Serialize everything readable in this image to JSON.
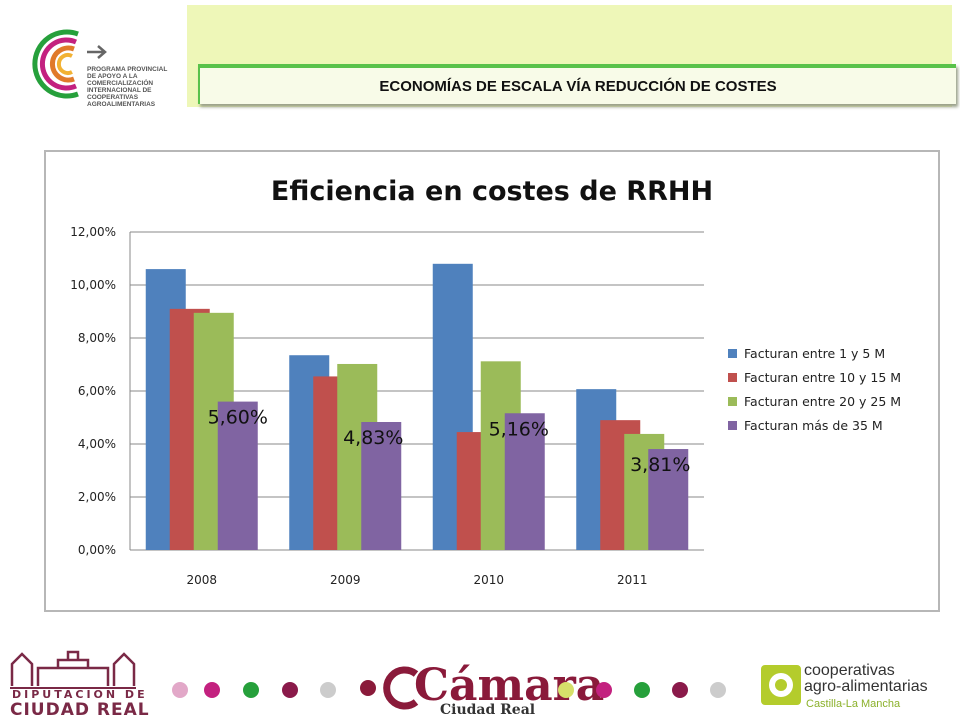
{
  "header": {
    "title": "ECONOMÍAS DE ESCALA VÍA REDUCCIÓN DE COSTES",
    "program_lines": [
      "PROGRAMA PROVINCIAL",
      "DE APOYO A LA",
      "COMERCIALIZACIÓN",
      "INTERNACIONAL DE",
      "COOPERATIVAS",
      "AGROALIMENTARIAS"
    ]
  },
  "chart_data": {
    "type": "bar",
    "title": "Eficiencia en costes de RRHH",
    "categories": [
      "2008",
      "2009",
      "2010",
      "2011"
    ],
    "series": [
      {
        "name": "Facturan entre 1 y 5 M",
        "color": "#4f81bd",
        "values": [
          10.6,
          7.35,
          10.8,
          6.07
        ]
      },
      {
        "name": "Facturan entre 10 y 15 M",
        "color": "#c0504d",
        "values": [
          9.1,
          6.55,
          4.45,
          4.9
        ]
      },
      {
        "name": "Facturan entre 20 y 25 M",
        "color": "#9bbb59",
        "values": [
          8.95,
          7.02,
          7.12,
          4.38
        ]
      },
      {
        "name": "Facturan más de 35 M",
        "color": "#8064a2",
        "values": [
          5.6,
          4.83,
          5.16,
          3.81
        ]
      }
    ],
    "ylim": [
      0,
      12
    ],
    "yticks": [
      "0,00%",
      "2,00%",
      "4,00%",
      "6,00%",
      "8,00%",
      "10,00%",
      "12,00%"
    ],
    "data_labels": [
      "5,60%",
      "4,83%",
      "5,16%",
      "3,81%"
    ],
    "legend": "right",
    "grid": true
  },
  "footer": {
    "diputacion_line1": "DIPUTACION DE",
    "diputacion_line2": "CIUDAD REAL",
    "camara": "Cámara",
    "camara_sub": "Ciudad Real",
    "coop_line1": "cooperativas",
    "coop_line2": "agro-alimentarias",
    "coop_line3": "Castilla-La Mancha",
    "dot_colors_left": [
      "#e2a8c8",
      "#c3217f",
      "#26a03b",
      "#8a1a4a",
      "#cccccc"
    ],
    "dot_colors_right": [
      "#d6e06a",
      "#c3217f",
      "#26a03b",
      "#8a1a4a",
      "#cccccc"
    ],
    "dot_color_mid": "#8a1a3a"
  }
}
